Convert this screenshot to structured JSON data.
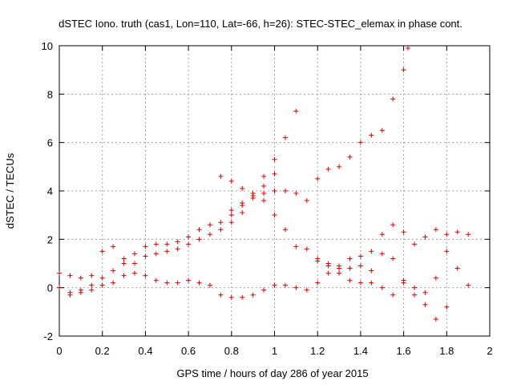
{
  "chart_data": {
    "type": "scatter",
    "title": "dSTEC Iono. truth (cas1, Lon=110, Lat=-66, h=26): STEC-STEC_elemax in phase cont.",
    "xlabel": "GPS time / hours of day 286 of year 2015",
    "ylabel": "dSTEC  / TECUs",
    "xlim": [
      0,
      2
    ],
    "ylim": [
      -2,
      10
    ],
    "xticks": [
      "0",
      "0.2",
      "0.4",
      "0.6",
      "0.8",
      "1",
      "1.2",
      "1.4",
      "1.6",
      "1.8",
      "2"
    ],
    "yticks": [
      "-2",
      "0",
      "2",
      "4",
      "6",
      "8",
      "10"
    ],
    "grid": true,
    "marker": "+",
    "color": "#e00000",
    "series": [
      {
        "points": [
          [
            0.0,
            0.0
          ],
          [
            0.05,
            -0.2
          ],
          [
            0.1,
            -0.1
          ],
          [
            0.15,
            0.1
          ],
          [
            0.2,
            0.4
          ],
          [
            0.25,
            0.7
          ],
          [
            0.3,
            1.0
          ],
          [
            0.35,
            1.4
          ],
          [
            0.4,
            1.7
          ],
          [
            0.45,
            1.8
          ],
          [
            0.5,
            1.8
          ],
          [
            0.55,
            1.9
          ],
          [
            0.6,
            2.1
          ],
          [
            0.65,
            2.4
          ],
          [
            0.7,
            2.6
          ],
          [
            0.75,
            2.7
          ],
          [
            0.8,
            3.0
          ],
          [
            0.85,
            3.4
          ],
          [
            0.9,
            3.8
          ],
          [
            0.95,
            4.2
          ],
          [
            1.0,
            4.7
          ]
        ]
      },
      {
        "points": [
          [
            0.0,
            0.0
          ],
          [
            0.05,
            -0.3
          ],
          [
            0.1,
            -0.2
          ],
          [
            0.15,
            -0.1
          ],
          [
            0.2,
            0.1
          ],
          [
            0.25,
            0.2
          ],
          [
            0.3,
            0.5
          ],
          [
            0.35,
            1.0
          ],
          [
            0.4,
            1.3
          ],
          [
            0.45,
            1.4
          ],
          [
            0.5,
            1.5
          ],
          [
            0.55,
            1.6
          ],
          [
            0.6,
            1.8
          ],
          [
            0.65,
            2.0
          ],
          [
            0.7,
            2.2
          ],
          [
            0.75,
            2.4
          ],
          [
            0.8,
            2.7
          ],
          [
            0.85,
            3.1
          ],
          [
            0.9,
            3.7
          ],
          [
            0.95,
            4.6
          ],
          [
            1.0,
            5.3
          ],
          [
            1.05,
            6.2
          ],
          [
            1.1,
            7.3
          ]
        ]
      },
      {
        "points": [
          [
            0.0,
            0.6
          ],
          [
            0.05,
            0.5
          ],
          [
            0.1,
            0.4
          ],
          [
            0.15,
            0.5
          ],
          [
            0.2,
            1.5
          ],
          [
            0.25,
            1.7
          ],
          [
            0.3,
            1.2
          ],
          [
            0.35,
            0.6
          ],
          [
            0.4,
            0.5
          ],
          [
            0.45,
            0.3
          ],
          [
            0.5,
            0.2
          ],
          [
            0.55,
            0.2
          ],
          [
            0.6,
            0.3
          ],
          [
            0.65,
            0.2
          ],
          [
            0.7,
            0.1
          ],
          [
            0.75,
            -0.3
          ],
          [
            0.8,
            -0.4
          ],
          [
            0.85,
            -0.4
          ],
          [
            0.9,
            -0.3
          ],
          [
            0.95,
            -0.1
          ],
          [
            1.0,
            0.1
          ],
          [
            1.05,
            0.1
          ],
          [
            1.1,
            0.0
          ],
          [
            1.15,
            -0.1
          ],
          [
            1.2,
            0.2
          ],
          [
            1.25,
            0.6
          ],
          [
            1.3,
            0.9
          ],
          [
            1.35,
            1.2
          ],
          [
            1.4,
            1.3
          ],
          [
            1.45,
            1.5
          ],
          [
            1.5,
            2.2
          ],
          [
            1.55,
            2.6
          ],
          [
            1.6,
            2.3
          ],
          [
            1.65,
            1.8
          ],
          [
            1.7,
            2.1
          ],
          [
            1.75,
            2.4
          ],
          [
            1.8,
            2.2
          ],
          [
            1.85,
            2.3
          ],
          [
            1.9,
            2.2
          ]
        ]
      },
      {
        "points": [
          [
            0.75,
            4.6
          ],
          [
            0.8,
            4.4
          ],
          [
            0.85,
            4.1
          ],
          [
            0.9,
            3.9
          ],
          [
            0.95,
            3.6
          ],
          [
            1.0,
            3.0
          ],
          [
            1.05,
            2.4
          ],
          [
            1.1,
            1.7
          ],
          [
            1.15,
            1.6
          ],
          [
            1.2,
            1.2
          ],
          [
            1.25,
            0.9
          ],
          [
            1.3,
            0.6
          ],
          [
            1.35,
            0.3
          ],
          [
            1.4,
            0.2
          ],
          [
            1.45,
            0.2
          ],
          [
            1.5,
            0.0
          ],
          [
            1.55,
            -0.3
          ],
          [
            1.6,
            0.2
          ],
          [
            1.65,
            -0.3
          ],
          [
            1.7,
            -0.7
          ],
          [
            1.75,
            -1.3
          ],
          [
            1.8,
            -0.8
          ]
        ]
      },
      {
        "points": [
          [
            0.8,
            3.2
          ],
          [
            0.85,
            3.5
          ],
          [
            0.9,
            3.8
          ],
          [
            0.95,
            3.9
          ],
          [
            1.0,
            4.0
          ],
          [
            1.05,
            4.0
          ],
          [
            1.1,
            3.9
          ],
          [
            1.15,
            3.6
          ],
          [
            1.2,
            4.5
          ],
          [
            1.25,
            4.9
          ],
          [
            1.3,
            5.0
          ],
          [
            1.35,
            5.4
          ],
          [
            1.4,
            6.0
          ],
          [
            1.45,
            6.3
          ],
          [
            1.5,
            6.5
          ],
          [
            1.55,
            7.8
          ],
          [
            1.6,
            9.0
          ],
          [
            1.62,
            9.9
          ]
        ]
      },
      {
        "points": [
          [
            1.2,
            1.1
          ],
          [
            1.25,
            1.0
          ],
          [
            1.3,
            0.8
          ],
          [
            1.35,
            0.8
          ],
          [
            1.4,
            0.9
          ],
          [
            1.45,
            0.7
          ],
          [
            1.5,
            1.4
          ],
          [
            1.55,
            1.2
          ],
          [
            1.6,
            0.3
          ],
          [
            1.65,
            0.0
          ],
          [
            1.7,
            -0.2
          ],
          [
            1.75,
            0.4
          ],
          [
            1.8,
            1.5
          ],
          [
            1.85,
            0.8
          ],
          [
            1.9,
            0.1
          ]
        ]
      }
    ]
  }
}
